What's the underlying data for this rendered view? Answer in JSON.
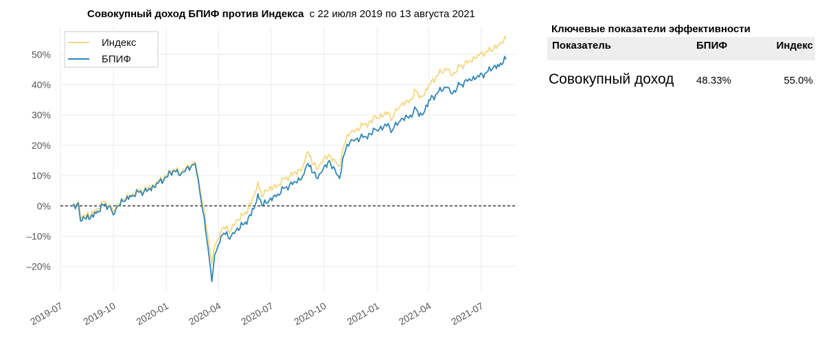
{
  "chart_title_bold": "Совокупный доход БПИФ против Индекса",
  "chart_title_rest": "с 22 июля 2019 по 13 августа 2021",
  "chart_data": {
    "type": "line",
    "title": "Совокупный доход БПИФ против Индекса  с 22 июля 2019 по 13 августа 2021",
    "xlabel": "",
    "ylabel": "",
    "x_ticks": [
      "2019-07",
      "2019-10",
      "2020-01",
      "2020-04",
      "2020-07",
      "2020-10",
      "2021-01",
      "2021-04",
      "2021-07"
    ],
    "y_ticks": [
      "-20%",
      "-10%",
      "0%",
      "10%",
      "20%",
      "30%",
      "40%",
      "50%"
    ],
    "ylim": [
      -28,
      58
    ],
    "xlim": [
      "2019-07-01",
      "2021-08-31"
    ],
    "grid": true,
    "legend_position": "top-left",
    "reference_line": {
      "y": 0,
      "style": "dashed"
    },
    "series": [
      {
        "name": "Индекс",
        "color": "#f5d77f",
        "points": [
          [
            "2019-07-22",
            0
          ],
          [
            "2019-08-01",
            1.5
          ],
          [
            "2019-08-05",
            -4
          ],
          [
            "2019-08-12",
            -3
          ],
          [
            "2019-08-20",
            -3.5
          ],
          [
            "2019-09-01",
            -1.5
          ],
          [
            "2019-09-15",
            1.2
          ],
          [
            "2019-09-25",
            0.5
          ],
          [
            "2019-10-01",
            -2
          ],
          [
            "2019-10-10",
            0.5
          ],
          [
            "2019-10-20",
            2
          ],
          [
            "2019-11-01",
            3.5
          ],
          [
            "2019-11-15",
            5
          ],
          [
            "2019-12-01",
            6
          ],
          [
            "2019-12-15",
            8
          ],
          [
            "2020-01-01",
            10
          ],
          [
            "2020-01-15",
            12
          ],
          [
            "2020-01-25",
            10.5
          ],
          [
            "2020-02-05",
            13
          ],
          [
            "2020-02-15",
            14
          ],
          [
            "2020-02-20",
            14.5
          ],
          [
            "2020-02-25",
            10
          ],
          [
            "2020-03-02",
            3
          ],
          [
            "2020-03-09",
            -5
          ],
          [
            "2020-03-16",
            -14
          ],
          [
            "2020-03-20",
            -19
          ],
          [
            "2020-03-25",
            -13
          ],
          [
            "2020-03-31",
            -11
          ],
          [
            "2020-04-10",
            -7
          ],
          [
            "2020-04-20",
            -9
          ],
          [
            "2020-05-01",
            -5
          ],
          [
            "2020-05-15",
            -3
          ],
          [
            "2020-06-01",
            3
          ],
          [
            "2020-06-08",
            8
          ],
          [
            "2020-06-15",
            3
          ],
          [
            "2020-06-25",
            5
          ],
          [
            "2020-07-10",
            6
          ],
          [
            "2020-07-25",
            9
          ],
          [
            "2020-08-10",
            11
          ],
          [
            "2020-08-25",
            13
          ],
          [
            "2020-09-03",
            18
          ],
          [
            "2020-09-10",
            14
          ],
          [
            "2020-09-20",
            12
          ],
          [
            "2020-10-01",
            16
          ],
          [
            "2020-10-10",
            17
          ],
          [
            "2020-10-20",
            15
          ],
          [
            "2020-10-28",
            13
          ],
          [
            "2020-11-05",
            20
          ],
          [
            "2020-11-15",
            24
          ],
          [
            "2020-11-25",
            25
          ],
          [
            "2020-12-10",
            27
          ],
          [
            "2020-12-31",
            29
          ],
          [
            "2021-01-15",
            31
          ],
          [
            "2021-01-28",
            29
          ],
          [
            "2021-02-10",
            33
          ],
          [
            "2021-02-25",
            34
          ],
          [
            "2021-03-10",
            38
          ],
          [
            "2021-03-20",
            36
          ],
          [
            "2021-04-01",
            40
          ],
          [
            "2021-04-15",
            43
          ],
          [
            "2021-05-01",
            45
          ],
          [
            "2021-05-12",
            43
          ],
          [
            "2021-05-25",
            46
          ],
          [
            "2021-06-10",
            48
          ],
          [
            "2021-06-25",
            50
          ],
          [
            "2021-07-10",
            51
          ],
          [
            "2021-07-20",
            51
          ],
          [
            "2021-08-01",
            53
          ],
          [
            "2021-08-13",
            55
          ]
        ]
      },
      {
        "name": "БПИФ",
        "color": "#2e86b5",
        "points": [
          [
            "2019-07-22",
            0
          ],
          [
            "2019-08-01",
            1
          ],
          [
            "2019-08-05",
            -5
          ],
          [
            "2019-08-12",
            -4
          ],
          [
            "2019-08-20",
            -4.5
          ],
          [
            "2019-09-01",
            -2.5
          ],
          [
            "2019-09-15",
            0.5
          ],
          [
            "2019-09-25",
            0
          ],
          [
            "2019-10-01",
            -3
          ],
          [
            "2019-10-10",
            0
          ],
          [
            "2019-10-20",
            1.5
          ],
          [
            "2019-11-01",
            3
          ],
          [
            "2019-11-15",
            4.5
          ],
          [
            "2019-12-01",
            5.5
          ],
          [
            "2019-12-15",
            7.5
          ],
          [
            "2020-01-01",
            9.5
          ],
          [
            "2020-01-15",
            11.5
          ],
          [
            "2020-01-25",
            10
          ],
          [
            "2020-02-05",
            12.5
          ],
          [
            "2020-02-15",
            13.5
          ],
          [
            "2020-02-20",
            14
          ],
          [
            "2020-02-25",
            9
          ],
          [
            "2020-03-02",
            1
          ],
          [
            "2020-03-09",
            -8
          ],
          [
            "2020-03-16",
            -18
          ],
          [
            "2020-03-20",
            -25
          ],
          [
            "2020-03-25",
            -16
          ],
          [
            "2020-03-31",
            -13
          ],
          [
            "2020-04-10",
            -9
          ],
          [
            "2020-04-20",
            -11
          ],
          [
            "2020-05-01",
            -8
          ],
          [
            "2020-05-15",
            -6
          ],
          [
            "2020-06-01",
            -1
          ],
          [
            "2020-06-08",
            4
          ],
          [
            "2020-06-15",
            0
          ],
          [
            "2020-06-25",
            1
          ],
          [
            "2020-07-10",
            3
          ],
          [
            "2020-07-25",
            6
          ],
          [
            "2020-08-10",
            8
          ],
          [
            "2020-08-25",
            10
          ],
          [
            "2020-09-03",
            14
          ],
          [
            "2020-09-10",
            11
          ],
          [
            "2020-09-20",
            9
          ],
          [
            "2020-10-01",
            13
          ],
          [
            "2020-10-10",
            15
          ],
          [
            "2020-10-20",
            12
          ],
          [
            "2020-10-28",
            9
          ],
          [
            "2020-11-05",
            17
          ],
          [
            "2020-11-15",
            21
          ],
          [
            "2020-11-25",
            22
          ],
          [
            "2020-12-10",
            23
          ],
          [
            "2020-12-31",
            25
          ],
          [
            "2021-01-15",
            27
          ],
          [
            "2021-01-28",
            25
          ],
          [
            "2021-02-10",
            28
          ],
          [
            "2021-02-25",
            29
          ],
          [
            "2021-03-10",
            32
          ],
          [
            "2021-03-20",
            30
          ],
          [
            "2021-04-01",
            35
          ],
          [
            "2021-04-15",
            37
          ],
          [
            "2021-05-01",
            39
          ],
          [
            "2021-05-12",
            37
          ],
          [
            "2021-05-25",
            40
          ],
          [
            "2021-06-10",
            42
          ],
          [
            "2021-06-25",
            43
          ],
          [
            "2021-07-10",
            44
          ],
          [
            "2021-07-20",
            45
          ],
          [
            "2021-08-01",
            46
          ],
          [
            "2021-08-13",
            48.33
          ]
        ]
      }
    ]
  },
  "kpi": {
    "title": "Ключевые показатели эффективности",
    "headers": {
      "name": "Показатель",
      "bpif": "БПИФ",
      "index": "Индекс"
    },
    "row": {
      "name": "Совокупный доход",
      "bpif": "48.33%",
      "index": "55.0%"
    }
  }
}
